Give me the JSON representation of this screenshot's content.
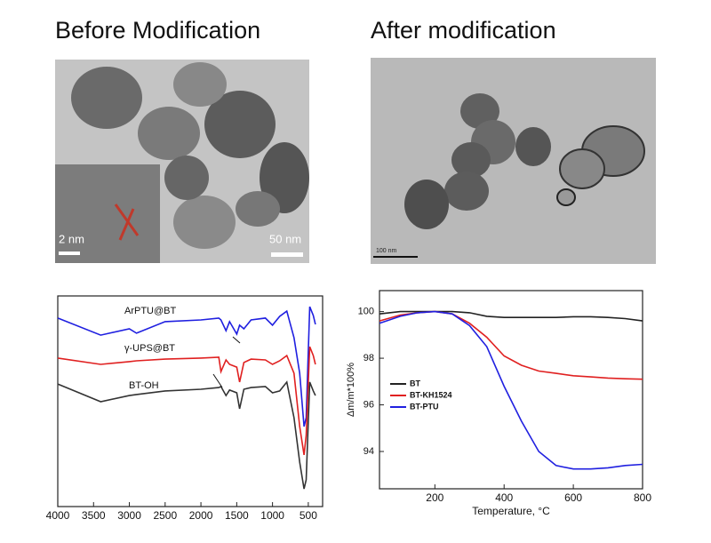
{
  "panels": [
    {
      "title": "Before Modification",
      "scale_labels": [
        "2 nm",
        "50 nm"
      ]
    },
    {
      "title": "After modification",
      "scale_labels": [
        "100 nm"
      ]
    }
  ],
  "chart_data": [
    {
      "type": "line",
      "x": [
        4000,
        3400,
        3000,
        2900,
        2500,
        2000,
        1750,
        1720,
        1650,
        1600,
        1500,
        1460,
        1400,
        1300,
        1100,
        1000,
        900,
        800,
        700,
        620,
        560,
        530,
        480,
        430,
        400
      ],
      "xlim": [
        4000,
        300
      ],
      "xticks": [
        4000,
        3500,
        3000,
        2500,
        2000,
        1500,
        1000,
        500
      ],
      "ylim": [
        0,
        100
      ],
      "annotations": [
        "ArPTU@BT",
        "γ-UPS@BT",
        "BT-OH"
      ],
      "series": [
        {
          "name": "ArPTU@BT",
          "color": "#1f1fe0",
          "values": [
            89.5,
            81.4,
            84.4,
            82.3,
            87.8,
            88.6,
            89.5,
            88.6,
            83.5,
            87.8,
            81.9,
            86.1,
            84.4,
            88.6,
            89.5,
            86.1,
            90.3,
            92.8,
            80.2,
            63.3,
            38.0,
            42.2,
            94.9,
            90.7,
            86.5
          ]
        },
        {
          "name": "γ-UPS@BT",
          "color": "#e02020",
          "values": [
            70.5,
            67.5,
            68.8,
            69.2,
            70.0,
            70.5,
            70.9,
            64.1,
            69.6,
            67.5,
            66.2,
            59.1,
            68.4,
            70.0,
            69.6,
            67.5,
            69.2,
            71.7,
            63.3,
            38.0,
            24.5,
            33.8,
            75.9,
            71.7,
            67.5
          ]
        },
        {
          "name": "BT-OH",
          "color": "#333333",
          "values": [
            58.2,
            49.8,
            52.7,
            53.2,
            54.9,
            55.7,
            56.5,
            57.0,
            52.7,
            55.3,
            54.0,
            46.4,
            55.7,
            56.5,
            57.0,
            54.0,
            54.9,
            59.1,
            42.2,
            21.1,
            8.4,
            12.7,
            59.1,
            54.9,
            52.7
          ]
        }
      ]
    },
    {
      "type": "line",
      "x": [
        40,
        100,
        150,
        200,
        250,
        300,
        350,
        400,
        450,
        500,
        550,
        600,
        650,
        700,
        750,
        800
      ],
      "xlim": [
        40,
        800
      ],
      "xticks": [
        200,
        400,
        600,
        800
      ],
      "ylim": [
        92.4,
        100.9
      ],
      "yticks": [
        94,
        96,
        98,
        100
      ],
      "x_label": "Temperature, °C",
      "y_label": "Δm/m*100%",
      "legend": "left",
      "series": [
        {
          "name": "BT",
          "color": "#222222",
          "values": [
            99.9,
            100,
            100,
            100,
            100,
            99.95,
            99.8,
            99.75,
            99.75,
            99.75,
            99.75,
            99.78,
            99.78,
            99.75,
            99.7,
            99.6
          ]
        },
        {
          "name": "BT-KH1524",
          "color": "#e02020",
          "values": [
            99.6,
            99.85,
            99.95,
            100,
            99.9,
            99.5,
            98.9,
            98.1,
            97.7,
            97.45,
            97.35,
            97.25,
            97.2,
            97.15,
            97.12,
            97.1
          ]
        },
        {
          "name": "BT-PTU",
          "color": "#2020e0",
          "values": [
            99.5,
            99.8,
            99.95,
            100,
            99.9,
            99.4,
            98.5,
            96.8,
            95.3,
            94.0,
            93.4,
            93.25,
            93.25,
            93.3,
            93.4,
            93.45
          ]
        }
      ]
    }
  ]
}
